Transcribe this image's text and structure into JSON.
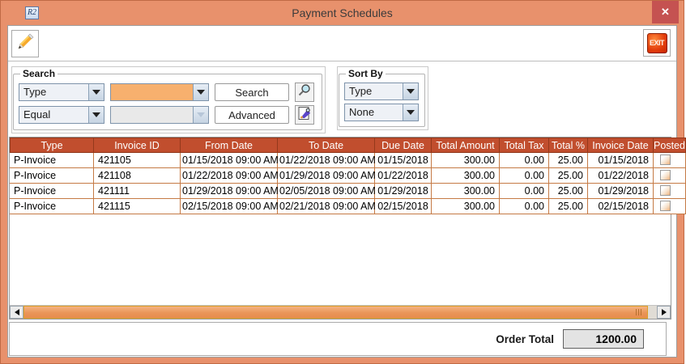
{
  "window": {
    "title": "Payment Schedules",
    "app_icon_text": "R2",
    "close_glyph": "✕"
  },
  "toolbar": {
    "edit_icon": "pencil-icon",
    "exit_label": "EXIT"
  },
  "search": {
    "legend": "Search",
    "field_selected": "Type",
    "operator_selected": "Equal",
    "value_selected": "",
    "value2_selected": "",
    "search_button": "Search",
    "advanced_button": "Advanced",
    "icons": [
      "magnifier-icon",
      "advanced-find-icon"
    ]
  },
  "sort": {
    "legend": "Sort By",
    "primary_selected": "Type",
    "secondary_selected": "None"
  },
  "table": {
    "columns": [
      {
        "key": "type",
        "label": "Type",
        "width": 104,
        "align": "left"
      },
      {
        "key": "invoice_id",
        "label": "Invoice ID",
        "width": 107,
        "align": "left"
      },
      {
        "key": "from_date",
        "label": "From Date",
        "width": 120,
        "align": "center"
      },
      {
        "key": "to_date",
        "label": "To Date",
        "width": 120,
        "align": "center"
      },
      {
        "key": "due_date",
        "label": "Due Date",
        "width": 70,
        "align": "center"
      },
      {
        "key": "total_amount",
        "label": "Total Amount",
        "width": 84,
        "align": "right"
      },
      {
        "key": "total_tax",
        "label": "Total Tax",
        "width": 61,
        "align": "right"
      },
      {
        "key": "total_pct",
        "label": "Total %",
        "width": 48,
        "align": "right"
      },
      {
        "key": "invoice_date",
        "label": "Invoice Date",
        "width": 81,
        "align": "right"
      },
      {
        "key": "posted",
        "label": "Posted",
        "width": 40,
        "align": "center"
      }
    ],
    "rows": [
      {
        "type": "P-Invoice",
        "invoice_id": "421105",
        "from_date": "01/15/2018 09:00 AM",
        "to_date": "01/22/2018 09:00 AM",
        "due_date": "01/15/2018",
        "total_amount": "300.00",
        "total_tax": "0.00",
        "total_pct": "25.00",
        "invoice_date": "01/15/2018",
        "posted": false
      },
      {
        "type": "P-Invoice",
        "invoice_id": "421108",
        "from_date": "01/22/2018 09:00 AM",
        "to_date": "01/29/2018 09:00 AM",
        "due_date": "01/22/2018",
        "total_amount": "300.00",
        "total_tax": "0.00",
        "total_pct": "25.00",
        "invoice_date": "01/22/2018",
        "posted": false
      },
      {
        "type": "P-Invoice",
        "invoice_id": "421111",
        "from_date": "01/29/2018 09:00 AM",
        "to_date": "02/05/2018 09:00 AM",
        "due_date": "01/29/2018",
        "total_amount": "300.00",
        "total_tax": "0.00",
        "total_pct": "25.00",
        "invoice_date": "01/29/2018",
        "posted": false
      },
      {
        "type": "P-Invoice",
        "invoice_id": "421115",
        "from_date": "02/15/2018 09:00 AM",
        "to_date": "02/21/2018 09:00 AM",
        "due_date": "02/15/2018",
        "total_amount": "300.00",
        "total_tax": "0.00",
        "total_pct": "25.00",
        "invoice_date": "02/15/2018",
        "posted": false
      }
    ]
  },
  "footer": {
    "order_total_label": "Order Total",
    "order_total_value": "1200.00"
  },
  "colors": {
    "frame": "#e8916c",
    "close_button": "#c55251",
    "table_header_bg": "#c14e2e",
    "table_grid": "#c57a45",
    "combo_highlight": "#f7b06e",
    "scroll_thumb": "#ea9559",
    "scroll_thumb_border": "#dd9f27",
    "exit_red": "#e23c0a"
  }
}
